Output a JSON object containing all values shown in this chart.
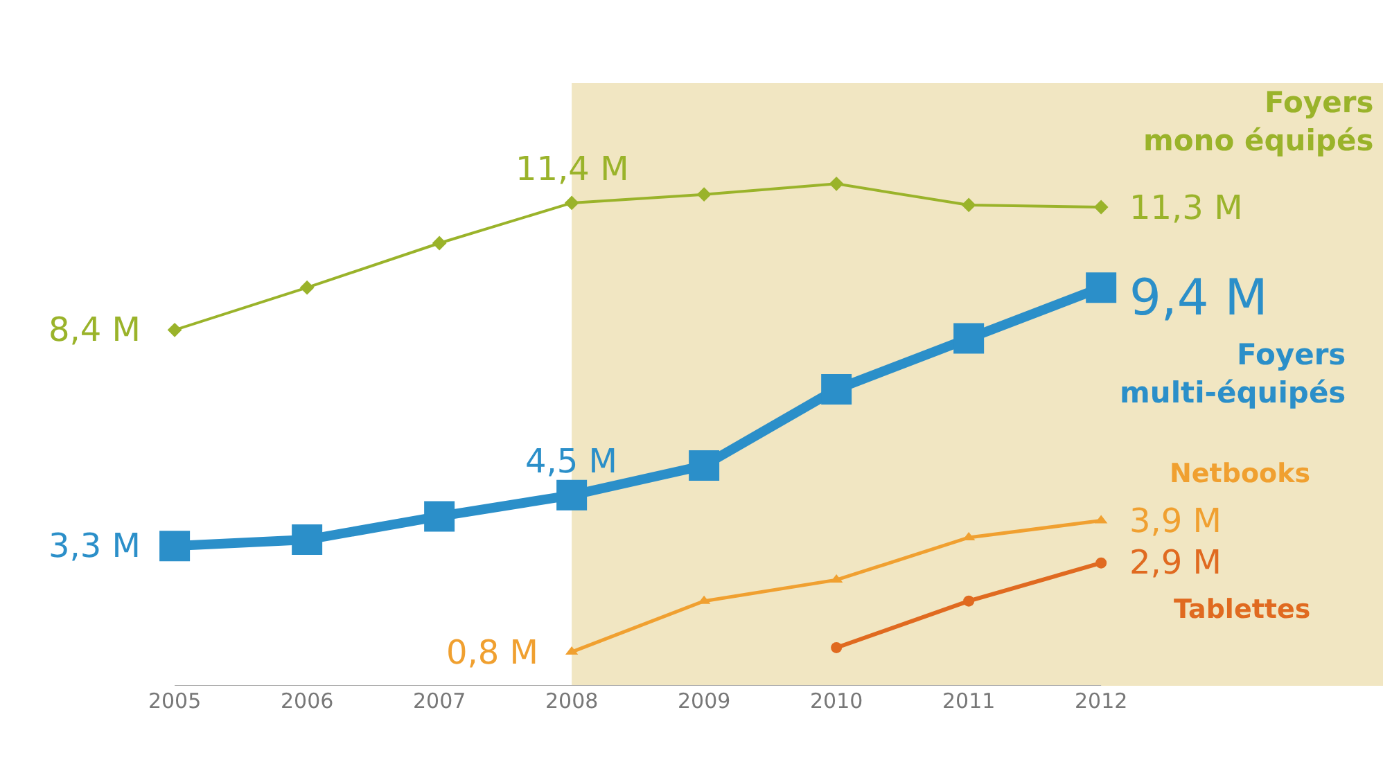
{
  "chart_data": {
    "type": "line",
    "x": [
      2005,
      2006,
      2007,
      2008,
      2009,
      2010,
      2011,
      2012
    ],
    "xlim": [
      2003.68,
      2014.13
    ],
    "xticks": [
      2005,
      2006,
      2007,
      2008,
      2009,
      2010,
      2011,
      2012
    ],
    "tick_labels": "x",
    "grid": false,
    "legend": false,
    "series": [
      {
        "name": "Foyers mono équipés",
        "color": "#9ab32a",
        "marker": "diamond",
        "values": [
          8.4,
          9.4,
          10.45,
          11.4,
          11.6,
          11.85,
          11.35,
          11.3
        ],
        "value_labels": [
          "8,4 M",
          null,
          null,
          "11,4 M",
          null,
          null,
          null,
          "11,3 M"
        ]
      },
      {
        "name": "Foyers multi-équipés",
        "color": "#2b8fc9",
        "marker": "square",
        "values": [
          3.3,
          3.45,
          4.0,
          4.5,
          5.2,
          7.0,
          8.2,
          9.4
        ],
        "value_labels": [
          "3,3 M",
          null,
          null,
          "4,5 M",
          null,
          null,
          null,
          "9,4 M"
        ]
      },
      {
        "name": "Netbooks",
        "color": "#f0a030",
        "marker": "triangle",
        "values": [
          null,
          null,
          null,
          0.8,
          2.0,
          2.5,
          3.5,
          3.9
        ],
        "value_labels": [
          null,
          null,
          null,
          "0,8 M",
          null,
          null,
          null,
          "3,9 M"
        ]
      },
      {
        "name": "Tablettes",
        "color": "#e06a20",
        "marker": "circle",
        "values": [
          null,
          null,
          null,
          null,
          null,
          0.9,
          2.0,
          2.9
        ],
        "value_labels": [
          null,
          null,
          null,
          null,
          null,
          null,
          null,
          "2,9 M"
        ]
      }
    ],
    "bands": [
      {
        "axis": "x",
        "from": 2008,
        "to": 2014.13,
        "color": "#e8d69a"
      }
    ]
  }
}
